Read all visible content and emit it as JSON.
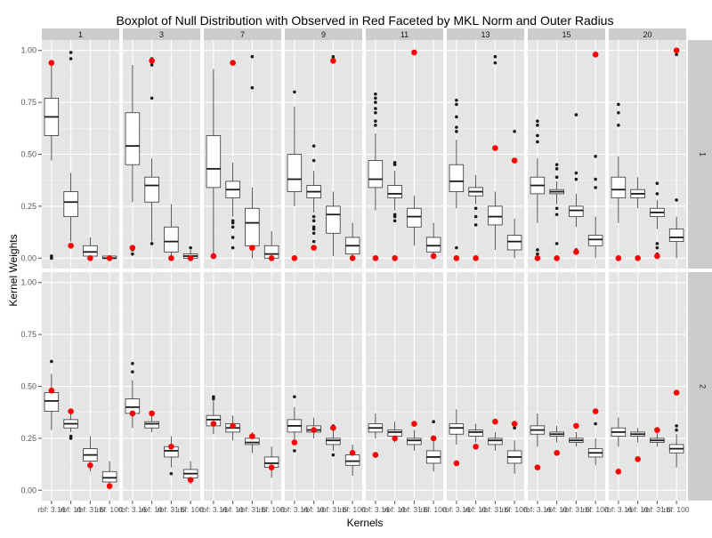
{
  "chart_data": {
    "type": "boxplot",
    "title": "Boxplot of Null Distribution with Observed in Red Faceted by MKL Norm and Outer Radius",
    "xlabel": "Kernels",
    "ylabel": "Kernel Weights",
    "ylim": [
      0,
      1
    ],
    "y_ticks": [
      0.0,
      0.25,
      0.5,
      0.75,
      1.0
    ],
    "y_tick_labels": [
      "0.00",
      "0.25",
      "0.50",
      "0.75",
      "1.00"
    ],
    "kernels": [
      "rbf: 3.16",
      "rbf: 10",
      "rbf: 31.6",
      "rbf: 100"
    ],
    "kernel_tick_labels": [
      "rbf: 3.16",
      "rbf: 10",
      "rbf: 31.6",
      "rbf: 100"
    ],
    "column_facets": [
      "1",
      "3",
      "7",
      "9",
      "11",
      "13",
      "15",
      "20"
    ],
    "row_facets": [
      "1",
      "2"
    ],
    "observed_color": "#ff0000",
    "panel_background": "#e5e5e5",
    "strip_background": "#cccccc",
    "grid": true,
    "panels": [
      {
        "row": "1",
        "col": "1",
        "boxes": [
          {
            "q1": 0.59,
            "median": 0.68,
            "q3": 0.77,
            "lo": 0.47,
            "hi": 0.93,
            "outliers": [
              0.0,
              0.01
            ],
            "observed": 0.94
          },
          {
            "q1": 0.2,
            "median": 0.27,
            "q3": 0.32,
            "lo": 0.08,
            "hi": 0.41,
            "outliers": [
              0.96,
              0.99
            ],
            "observed": 0.06
          },
          {
            "q1": 0.01,
            "median": 0.03,
            "q3": 0.06,
            "lo": 0.0,
            "hi": 0.1,
            "outliers": [],
            "observed": 0.0
          },
          {
            "q1": 0.0,
            "median": 0.0,
            "q3": 0.01,
            "lo": 0.0,
            "hi": 0.01,
            "outliers": [],
            "observed": 0.0
          }
        ]
      },
      {
        "row": "1",
        "col": "3",
        "boxes": [
          {
            "q1": 0.45,
            "median": 0.54,
            "q3": 0.7,
            "lo": 0.27,
            "hi": 0.93,
            "outliers": [
              0.02,
              0.04
            ],
            "observed": 0.05
          },
          {
            "q1": 0.27,
            "median": 0.35,
            "q3": 0.39,
            "lo": 0.08,
            "hi": 0.48,
            "outliers": [
              0.07,
              0.77,
              0.93,
              0.96
            ],
            "observed": 0.95
          },
          {
            "q1": 0.03,
            "median": 0.08,
            "q3": 0.15,
            "lo": 0.0,
            "hi": 0.26,
            "outliers": [],
            "observed": 0.0
          },
          {
            "q1": 0.0,
            "median": 0.01,
            "q3": 0.02,
            "lo": 0.0,
            "hi": 0.04,
            "outliers": [
              0.05
            ],
            "observed": 0.0
          }
        ]
      },
      {
        "row": "1",
        "col": "7",
        "boxes": [
          {
            "q1": 0.34,
            "median": 0.43,
            "q3": 0.59,
            "lo": 0.01,
            "hi": 0.91,
            "outliers": [],
            "observed": 0.01
          },
          {
            "q1": 0.29,
            "median": 0.33,
            "q3": 0.37,
            "lo": 0.2,
            "hi": 0.46,
            "outliers": [
              0.05,
              0.1,
              0.15,
              0.17,
              0.18,
              0.94
            ],
            "observed": 0.94
          },
          {
            "q1": 0.06,
            "median": 0.17,
            "q3": 0.24,
            "lo": 0.0,
            "hi": 0.34,
            "outliers": [
              0.82,
              0.97
            ],
            "observed": 0.05
          },
          {
            "q1": 0.0,
            "median": 0.02,
            "q3": 0.06,
            "lo": 0.0,
            "hi": 0.13,
            "outliers": [],
            "observed": 0.0
          }
        ]
      },
      {
        "row": "1",
        "col": "9",
        "boxes": [
          {
            "q1": 0.32,
            "median": 0.38,
            "q3": 0.5,
            "lo": 0.25,
            "hi": 0.73,
            "outliers": [
              0.8
            ],
            "observed": 0.0
          },
          {
            "q1": 0.29,
            "median": 0.32,
            "q3": 0.35,
            "lo": 0.22,
            "hi": 0.42,
            "outliers": [
              0.08,
              0.12,
              0.14,
              0.15,
              0.18,
              0.2,
              0.47,
              0.54
            ],
            "observed": 0.05
          },
          {
            "q1": 0.12,
            "median": 0.21,
            "q3": 0.25,
            "lo": 0.01,
            "hi": 0.32,
            "outliers": [
              0.96,
              0.97
            ],
            "observed": 0.95
          },
          {
            "q1": 0.02,
            "median": 0.06,
            "q3": 0.1,
            "lo": 0.0,
            "hi": 0.17,
            "outliers": [],
            "observed": 0.0
          }
        ]
      },
      {
        "row": "1",
        "col": "11",
        "boxes": [
          {
            "q1": 0.34,
            "median": 0.38,
            "q3": 0.47,
            "lo": 0.23,
            "hi": 0.6,
            "outliers": [
              0.64,
              0.66,
              0.7,
              0.72,
              0.75,
              0.77,
              0.79
            ],
            "observed": 0.0
          },
          {
            "q1": 0.29,
            "median": 0.31,
            "q3": 0.35,
            "lo": 0.23,
            "hi": 0.42,
            "outliers": [
              0.18,
              0.2,
              0.21,
              0.45,
              0.46
            ],
            "observed": 0.0
          },
          {
            "q1": 0.15,
            "median": 0.2,
            "q3": 0.24,
            "lo": 0.06,
            "hi": 0.3,
            "outliers": [],
            "observed": 0.99
          },
          {
            "q1": 0.03,
            "median": 0.06,
            "q3": 0.1,
            "lo": 0.0,
            "hi": 0.17,
            "outliers": [],
            "observed": 0.01
          }
        ]
      },
      {
        "row": "1",
        "col": "13",
        "boxes": [
          {
            "q1": 0.32,
            "median": 0.37,
            "q3": 0.45,
            "lo": 0.24,
            "hi": 0.57,
            "outliers": [
              0.05,
              0.61,
              0.63,
              0.68,
              0.74,
              0.76
            ],
            "observed": 0.0
          },
          {
            "q1": 0.3,
            "median": 0.32,
            "q3": 0.34,
            "lo": 0.26,
            "hi": 0.4,
            "outliers": [
              0.16,
              0.2,
              0.24
            ],
            "observed": 0.0
          },
          {
            "q1": 0.16,
            "median": 0.2,
            "q3": 0.25,
            "lo": 0.04,
            "hi": 0.32,
            "outliers": [
              0.94,
              0.97
            ],
            "observed": 0.53
          },
          {
            "q1": 0.04,
            "median": 0.08,
            "q3": 0.11,
            "lo": 0.0,
            "hi": 0.19,
            "outliers": [
              0.61
            ],
            "observed": 0.47
          }
        ]
      },
      {
        "row": "1",
        "col": "15",
        "boxes": [
          {
            "q1": 0.31,
            "median": 0.35,
            "q3": 0.39,
            "lo": 0.17,
            "hi": 0.48,
            "outliers": [
              0.02,
              0.04,
              0.56,
              0.59,
              0.64,
              0.66
            ],
            "observed": 0.0
          },
          {
            "q1": 0.31,
            "median": 0.32,
            "q3": 0.33,
            "lo": 0.26,
            "hi": 0.37,
            "outliers": [
              0.07,
              0.21,
              0.24,
              0.39,
              0.43,
              0.45
            ],
            "observed": 0.0
          },
          {
            "q1": 0.2,
            "median": 0.23,
            "q3": 0.25,
            "lo": 0.15,
            "hi": 0.31,
            "outliers": [
              0.04,
              0.38,
              0.41,
              0.69
            ],
            "observed": 0.03
          },
          {
            "q1": 0.06,
            "median": 0.09,
            "q3": 0.11,
            "lo": 0.0,
            "hi": 0.2,
            "outliers": [
              0.34,
              0.38,
              0.49
            ],
            "observed": 0.98
          }
        ]
      },
      {
        "row": "1",
        "col": "20",
        "boxes": [
          {
            "q1": 0.29,
            "median": 0.33,
            "q3": 0.39,
            "lo": 0.17,
            "hi": 0.49,
            "outliers": [
              0.64,
              0.7,
              0.74
            ],
            "observed": 0.0
          },
          {
            "q1": 0.29,
            "median": 0.31,
            "q3": 0.33,
            "lo": 0.24,
            "hi": 0.39,
            "outliers": [],
            "observed": 0.0
          },
          {
            "q1": 0.2,
            "median": 0.22,
            "q3": 0.24,
            "lo": 0.14,
            "hi": 0.28,
            "outliers": [
              0.02,
              0.05,
              0.07,
              0.31,
              0.36
            ],
            "observed": 0.01
          },
          {
            "q1": 0.08,
            "median": 0.1,
            "q3": 0.14,
            "lo": 0.0,
            "hi": 0.2,
            "outliers": [
              0.28,
              0.98
            ],
            "observed": 1.0
          }
        ]
      },
      {
        "row": "2",
        "col": "1",
        "boxes": [
          {
            "q1": 0.38,
            "median": 0.43,
            "q3": 0.47,
            "lo": 0.29,
            "hi": 0.56,
            "outliers": [
              0.62
            ],
            "observed": 0.48
          },
          {
            "q1": 0.3,
            "median": 0.32,
            "q3": 0.34,
            "lo": 0.28,
            "hi": 0.38,
            "outliers": [
              0.25,
              0.26
            ],
            "observed": 0.38
          },
          {
            "q1": 0.14,
            "median": 0.17,
            "q3": 0.2,
            "lo": 0.09,
            "hi": 0.26,
            "outliers": [],
            "observed": 0.12
          },
          {
            "q1": 0.04,
            "median": 0.06,
            "q3": 0.09,
            "lo": 0.01,
            "hi": 0.14,
            "outliers": [],
            "observed": 0.02
          }
        ]
      },
      {
        "row": "2",
        "col": "3",
        "boxes": [
          {
            "q1": 0.37,
            "median": 0.4,
            "q3": 0.44,
            "lo": 0.3,
            "hi": 0.53,
            "outliers": [
              0.57,
              0.61
            ],
            "observed": 0.37
          },
          {
            "q1": 0.3,
            "median": 0.32,
            "q3": 0.33,
            "lo": 0.28,
            "hi": 0.37,
            "outliers": [],
            "observed": 0.37
          },
          {
            "q1": 0.16,
            "median": 0.19,
            "q3": 0.21,
            "lo": 0.11,
            "hi": 0.26,
            "outliers": [
              0.08
            ],
            "observed": 0.21
          },
          {
            "q1": 0.06,
            "median": 0.08,
            "q3": 0.1,
            "lo": 0.03,
            "hi": 0.14,
            "outliers": [],
            "observed": 0.05
          }
        ]
      },
      {
        "row": "2",
        "col": "7",
        "boxes": [
          {
            "q1": 0.31,
            "median": 0.34,
            "q3": 0.36,
            "lo": 0.27,
            "hi": 0.43,
            "outliers": [
              0.44,
              0.45
            ],
            "observed": 0.32
          },
          {
            "q1": 0.28,
            "median": 0.3,
            "q3": 0.32,
            "lo": 0.24,
            "hi": 0.36,
            "outliers": [],
            "observed": 0.31
          },
          {
            "q1": 0.22,
            "median": 0.23,
            "q3": 0.25,
            "lo": 0.18,
            "hi": 0.28,
            "outliers": [],
            "observed": 0.26
          },
          {
            "q1": 0.11,
            "median": 0.13,
            "q3": 0.16,
            "lo": 0.06,
            "hi": 0.21,
            "outliers": [],
            "observed": 0.11
          }
        ]
      },
      {
        "row": "2",
        "col": "9",
        "boxes": [
          {
            "q1": 0.28,
            "median": 0.31,
            "q3": 0.34,
            "lo": 0.23,
            "hi": 0.4,
            "outliers": [
              0.19,
              0.45
            ],
            "observed": 0.23
          },
          {
            "q1": 0.28,
            "median": 0.29,
            "q3": 0.31,
            "lo": 0.25,
            "hi": 0.35,
            "outliers": [],
            "observed": 0.29
          },
          {
            "q1": 0.22,
            "median": 0.24,
            "q3": 0.25,
            "lo": 0.19,
            "hi": 0.29,
            "outliers": [
              0.17,
              0.31
            ],
            "observed": 0.3
          },
          {
            "q1": 0.12,
            "median": 0.14,
            "q3": 0.17,
            "lo": 0.07,
            "hi": 0.22,
            "outliers": [],
            "observed": 0.18
          }
        ]
      },
      {
        "row": "2",
        "col": "11",
        "boxes": [
          {
            "q1": 0.28,
            "median": 0.3,
            "q3": 0.32,
            "lo": 0.25,
            "hi": 0.37,
            "outliers": [],
            "observed": 0.17
          },
          {
            "q1": 0.26,
            "median": 0.28,
            "q3": 0.29,
            "lo": 0.23,
            "hi": 0.33,
            "outliers": [],
            "observed": 0.25
          },
          {
            "q1": 0.22,
            "median": 0.24,
            "q3": 0.25,
            "lo": 0.19,
            "hi": 0.29,
            "outliers": [],
            "observed": 0.32
          },
          {
            "q1": 0.13,
            "median": 0.16,
            "q3": 0.19,
            "lo": 0.09,
            "hi": 0.25,
            "outliers": [
              0.33
            ],
            "observed": 0.25
          }
        ]
      },
      {
        "row": "2",
        "col": "13",
        "boxes": [
          {
            "q1": 0.27,
            "median": 0.3,
            "q3": 0.32,
            "lo": 0.22,
            "hi": 0.39,
            "outliers": [],
            "observed": 0.13
          },
          {
            "q1": 0.26,
            "median": 0.28,
            "q3": 0.29,
            "lo": 0.23,
            "hi": 0.32,
            "outliers": [],
            "observed": 0.21
          },
          {
            "q1": 0.22,
            "median": 0.24,
            "q3": 0.25,
            "lo": 0.19,
            "hi": 0.28,
            "outliers": [],
            "observed": 0.33
          },
          {
            "q1": 0.13,
            "median": 0.16,
            "q3": 0.19,
            "lo": 0.08,
            "hi": 0.24,
            "outliers": [
              0.3
            ],
            "observed": 0.32
          }
        ]
      },
      {
        "row": "2",
        "col": "15",
        "boxes": [
          {
            "q1": 0.27,
            "median": 0.29,
            "q3": 0.31,
            "lo": 0.21,
            "hi": 0.37,
            "outliers": [],
            "observed": 0.11
          },
          {
            "q1": 0.26,
            "median": 0.27,
            "q3": 0.28,
            "lo": 0.23,
            "hi": 0.31,
            "outliers": [],
            "observed": 0.18
          },
          {
            "q1": 0.23,
            "median": 0.24,
            "q3": 0.25,
            "lo": 0.21,
            "hi": 0.28,
            "outliers": [],
            "observed": 0.31
          },
          {
            "q1": 0.16,
            "median": 0.18,
            "q3": 0.2,
            "lo": 0.12,
            "hi": 0.25,
            "outliers": [
              0.32
            ],
            "observed": 0.38
          }
        ]
      },
      {
        "row": "2",
        "col": "20",
        "boxes": [
          {
            "q1": 0.26,
            "median": 0.28,
            "q3": 0.3,
            "lo": 0.21,
            "hi": 0.35,
            "outliers": [],
            "observed": 0.09
          },
          {
            "q1": 0.26,
            "median": 0.27,
            "q3": 0.28,
            "lo": 0.23,
            "hi": 0.3,
            "outliers": [],
            "observed": 0.15
          },
          {
            "q1": 0.23,
            "median": 0.24,
            "q3": 0.25,
            "lo": 0.21,
            "hi": 0.28,
            "outliers": [],
            "observed": 0.29
          },
          {
            "q1": 0.18,
            "median": 0.2,
            "q3": 0.22,
            "lo": 0.11,
            "hi": 0.27,
            "outliers": [
              0.29,
              0.31
            ],
            "observed": 0.47
          }
        ]
      }
    ]
  }
}
